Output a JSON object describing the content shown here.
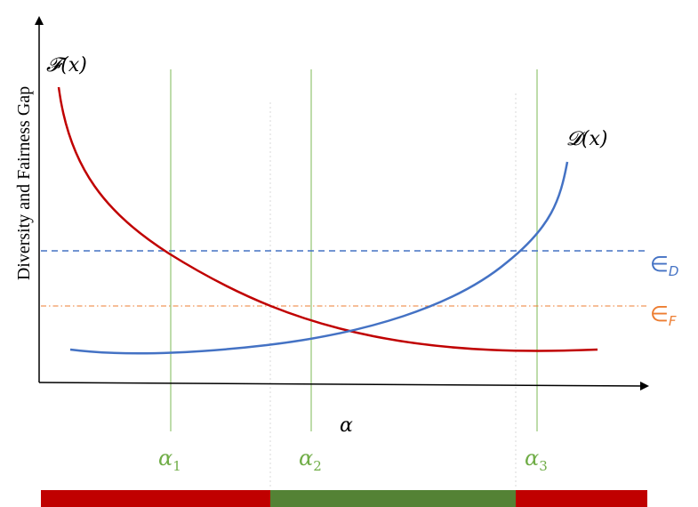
{
  "ylabel": "Diversity and Fairness Gap",
  "xlabel": "α",
  "curves": {
    "F": {
      "label": "𝓕(x)",
      "color": "#c00000"
    },
    "D": {
      "label": "𝓓(x)",
      "color": "#4472c4"
    }
  },
  "thresholds": {
    "eps_D": {
      "symbol": "∈",
      "sub": "D",
      "color": "#4472c4"
    },
    "eps_F": {
      "symbol": "∈",
      "sub": "F",
      "color": "#ed7d31"
    }
  },
  "alphas": [
    {
      "base": "α",
      "sub": "1"
    },
    {
      "base": "α",
      "sub": "2"
    },
    {
      "base": "α",
      "sub": "3"
    }
  ],
  "alpha_color": "#70ad47",
  "region_bar": {
    "segments": [
      {
        "state": "infeasible",
        "color": "#c00000"
      },
      {
        "state": "feasible",
        "color": "#548235"
      },
      {
        "state": "infeasible",
        "color": "#c00000"
      }
    ]
  }
}
